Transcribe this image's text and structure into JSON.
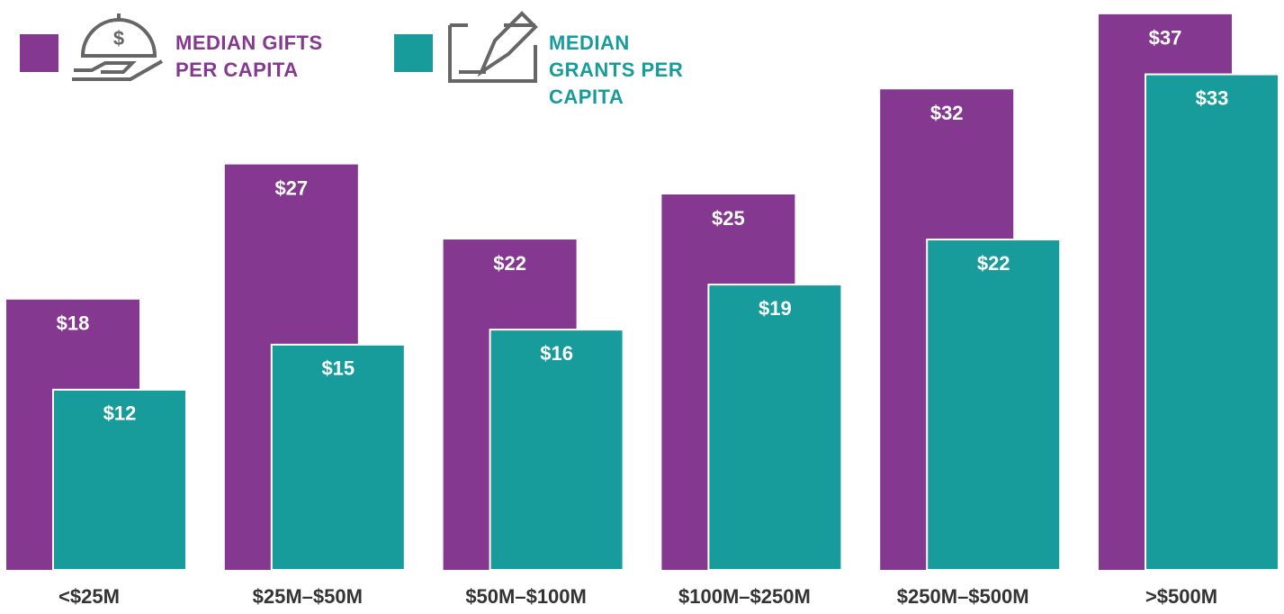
{
  "chart_data": {
    "type": "bar",
    "categories": [
      "<$25M",
      "$25M–$50M",
      "$50M–$100M",
      "$100M–$250M",
      "$250M–$500M",
      ">$500M"
    ],
    "series": [
      {
        "name": "MEDIAN GIFTS PER CAPITA",
        "color": "#84388f",
        "values": [
          18,
          27,
          22,
          25,
          32,
          37
        ],
        "value_labels": [
          "$18",
          "$27",
          "$22",
          "$25",
          "$32",
          "$37"
        ]
      },
      {
        "name": "MEDIAN GRANTS PER CAPITA",
        "color": "#189b9b",
        "values": [
          12,
          15,
          16,
          19,
          22,
          33
        ],
        "value_labels": [
          "$12",
          "$15",
          "$16",
          "$19",
          "$22",
          "$33"
        ]
      }
    ]
  }
}
